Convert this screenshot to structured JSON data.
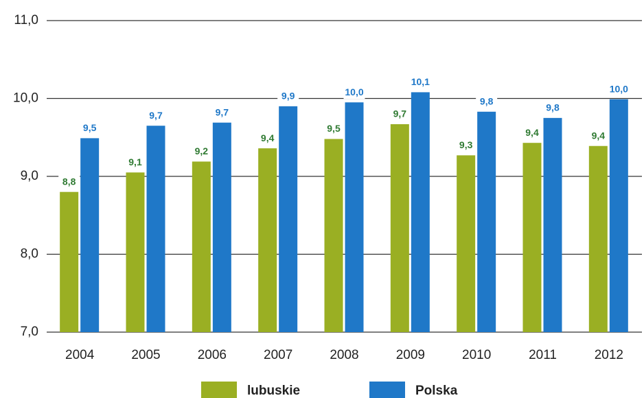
{
  "chart_data": {
    "type": "bar",
    "categories": [
      "2004",
      "2005",
      "2006",
      "2007",
      "2008",
      "2009",
      "2010",
      "2011",
      "2012"
    ],
    "series": [
      {
        "name": "lubuskie",
        "color": "#9aaf23",
        "label_color": "#2f7a32",
        "values": [
          8.8,
          9.05,
          9.19,
          9.36,
          9.48,
          9.67,
          9.27,
          9.43,
          9.39
        ],
        "value_labels": [
          "8,8",
          "9,1",
          "9,2",
          "9,4",
          "9,5",
          "9,7",
          "9,3",
          "9,4",
          "9,4"
        ]
      },
      {
        "name": "Polska",
        "color": "#1f78c8",
        "label_color": "#1f78c8",
        "values": [
          9.49,
          9.65,
          9.69,
          9.9,
          9.95,
          10.08,
          9.83,
          9.75,
          9.99
        ],
        "value_labels": [
          "9,5",
          "9,7",
          "9,7",
          "9,9",
          "10,0",
          "10,1",
          "9,8",
          "9,8",
          "10,0"
        ]
      }
    ],
    "ylim": [
      7,
      11
    ],
    "yticks": [
      {
        "value": 7,
        "label": "7,0"
      },
      {
        "value": 8,
        "label": "8,0"
      },
      {
        "value": 9,
        "label": "9,0"
      },
      {
        "value": 10,
        "label": "10,0"
      },
      {
        "value": 11,
        "label": "11,0"
      }
    ],
    "grid": true,
    "legend": "bottom"
  }
}
